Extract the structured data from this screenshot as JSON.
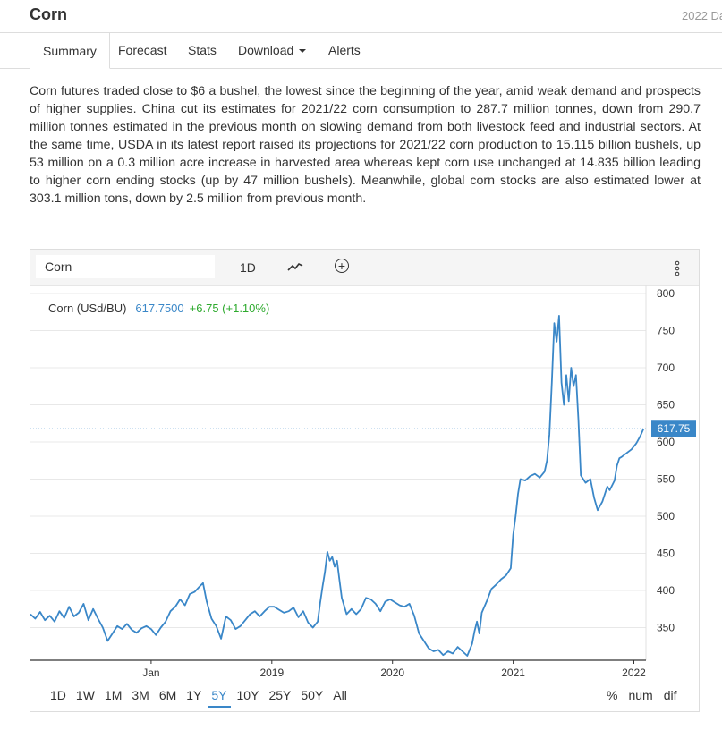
{
  "header": {
    "title": "Corn",
    "date": "2022 Da"
  },
  "tabs": [
    {
      "label": "Summary"
    },
    {
      "label": "Forecast"
    },
    {
      "label": "Stats"
    },
    {
      "label": "Download"
    },
    {
      "label": "Alerts"
    }
  ],
  "description": "Corn futures traded close to $6 a bushel, the lowest since the beginning of the year, amid weak demand and prospects of higher supplies. China cut its estimates for 2021/22 corn consumption to 287.7 million tonnes, down from 290.7 million tonnes estimated in the previous month on slowing demand from both livestock feed and industrial sectors. At the same time, USDA in its latest report raised its projections for 2021/22 corn production to 15.115 billion bushels, up 53 million on a 0.3 million acre increase in harvested area whereas kept corn use unchanged at 14.835 billion leading to higher corn ending stocks (up by 47 million bushels). Meanwhile, global corn stocks are also estimated lower at 303.1 million tons, down by 2.5 million from previous month.",
  "toolbar": {
    "symbol": "Corn",
    "interval": "1D"
  },
  "legend": {
    "name": "Corn (USd/BU)",
    "price": "617.7500",
    "change": "+6.75 (+1.10%)"
  },
  "range_buttons": [
    "1D",
    "1W",
    "1M",
    "3M",
    "6M",
    "1Y",
    "5Y",
    "10Y",
    "25Y",
    "50Y",
    "All"
  ],
  "selected_range": "5Y",
  "modes": [
    "%",
    "num",
    "dif"
  ],
  "colors": {
    "line": "#3a87c8",
    "change_up": "#2eaa2e",
    "price_tag": "#3a87c8"
  },
  "chart_data": {
    "type": "line",
    "series": [
      {
        "name": "Corn (USd/BU)",
        "points": [
          [
            2017.0,
            368
          ],
          [
            2017.04,
            362
          ],
          [
            2017.08,
            371
          ],
          [
            2017.12,
            360
          ],
          [
            2017.16,
            366
          ],
          [
            2017.2,
            358
          ],
          [
            2017.24,
            372
          ],
          [
            2017.28,
            363
          ],
          [
            2017.32,
            378
          ],
          [
            2017.36,
            365
          ],
          [
            2017.4,
            370
          ],
          [
            2017.44,
            382
          ],
          [
            2017.48,
            360
          ],
          [
            2017.52,
            375
          ],
          [
            2017.56,
            362
          ],
          [
            2017.6,
            350
          ],
          [
            2017.64,
            332
          ],
          [
            2017.68,
            342
          ],
          [
            2017.72,
            352
          ],
          [
            2017.76,
            348
          ],
          [
            2017.8,
            355
          ],
          [
            2017.84,
            347
          ],
          [
            2017.88,
            343
          ],
          [
            2017.92,
            349
          ],
          [
            2017.96,
            352
          ],
          [
            2018.0,
            348
          ],
          [
            2018.04,
            340
          ],
          [
            2018.08,
            350
          ],
          [
            2018.12,
            358
          ],
          [
            2018.16,
            372
          ],
          [
            2018.2,
            378
          ],
          [
            2018.24,
            388
          ],
          [
            2018.28,
            380
          ],
          [
            2018.32,
            395
          ],
          [
            2018.36,
            398
          ],
          [
            2018.4,
            405
          ],
          [
            2018.43,
            410
          ],
          [
            2018.46,
            385
          ],
          [
            2018.5,
            362
          ],
          [
            2018.54,
            352
          ],
          [
            2018.58,
            335
          ],
          [
            2018.62,
            365
          ],
          [
            2018.66,
            360
          ],
          [
            2018.7,
            348
          ],
          [
            2018.74,
            352
          ],
          [
            2018.78,
            360
          ],
          [
            2018.82,
            368
          ],
          [
            2018.86,
            372
          ],
          [
            2018.9,
            365
          ],
          [
            2018.94,
            372
          ],
          [
            2018.98,
            378
          ],
          [
            2019.02,
            378
          ],
          [
            2019.06,
            374
          ],
          [
            2019.1,
            370
          ],
          [
            2019.14,
            372
          ],
          [
            2019.18,
            377
          ],
          [
            2019.22,
            364
          ],
          [
            2019.26,
            372
          ],
          [
            2019.3,
            357
          ],
          [
            2019.34,
            350
          ],
          [
            2019.38,
            358
          ],
          [
            2019.4,
            383
          ],
          [
            2019.42,
            405
          ],
          [
            2019.44,
            425
          ],
          [
            2019.46,
            452
          ],
          [
            2019.48,
            440
          ],
          [
            2019.5,
            445
          ],
          [
            2019.52,
            432
          ],
          [
            2019.54,
            440
          ],
          [
            2019.56,
            415
          ],
          [
            2019.58,
            390
          ],
          [
            2019.62,
            368
          ],
          [
            2019.66,
            375
          ],
          [
            2019.7,
            368
          ],
          [
            2019.74,
            375
          ],
          [
            2019.78,
            390
          ],
          [
            2019.82,
            388
          ],
          [
            2019.86,
            382
          ],
          [
            2019.9,
            372
          ],
          [
            2019.94,
            385
          ],
          [
            2019.98,
            388
          ],
          [
            2020.02,
            384
          ],
          [
            2020.06,
            380
          ],
          [
            2020.1,
            378
          ],
          [
            2020.14,
            382
          ],
          [
            2020.18,
            366
          ],
          [
            2020.22,
            342
          ],
          [
            2020.26,
            332
          ],
          [
            2020.3,
            322
          ],
          [
            2020.34,
            318
          ],
          [
            2020.38,
            320
          ],
          [
            2020.42,
            313
          ],
          [
            2020.46,
            318
          ],
          [
            2020.5,
            315
          ],
          [
            2020.54,
            324
          ],
          [
            2020.58,
            318
          ],
          [
            2020.62,
            312
          ],
          [
            2020.66,
            328
          ],
          [
            2020.68,
            345
          ],
          [
            2020.7,
            358
          ],
          [
            2020.72,
            342
          ],
          [
            2020.74,
            370
          ],
          [
            2020.78,
            385
          ],
          [
            2020.82,
            402
          ],
          [
            2020.86,
            408
          ],
          [
            2020.9,
            415
          ],
          [
            2020.94,
            420
          ],
          [
            2020.98,
            430
          ],
          [
            2021.0,
            475
          ],
          [
            2021.02,
            500
          ],
          [
            2021.04,
            530
          ],
          [
            2021.06,
            550
          ],
          [
            2021.1,
            548
          ],
          [
            2021.14,
            554
          ],
          [
            2021.18,
            557
          ],
          [
            2021.22,
            552
          ],
          [
            2021.26,
            560
          ],
          [
            2021.28,
            575
          ],
          [
            2021.3,
            610
          ],
          [
            2021.32,
            680
          ],
          [
            2021.34,
            760
          ],
          [
            2021.36,
            735
          ],
          [
            2021.38,
            770
          ],
          [
            2021.4,
            680
          ],
          [
            2021.42,
            650
          ],
          [
            2021.44,
            690
          ],
          [
            2021.46,
            655
          ],
          [
            2021.48,
            700
          ],
          [
            2021.5,
            675
          ],
          [
            2021.52,
            690
          ],
          [
            2021.54,
            630
          ],
          [
            2021.56,
            555
          ],
          [
            2021.6,
            545
          ],
          [
            2021.64,
            550
          ],
          [
            2021.67,
            525
          ],
          [
            2021.7,
            508
          ],
          [
            2021.74,
            520
          ],
          [
            2021.78,
            540
          ],
          [
            2021.8,
            535
          ],
          [
            2021.84,
            548
          ],
          [
            2021.86,
            568
          ],
          [
            2021.88,
            578
          ],
          [
            2021.9,
            580
          ],
          [
            2021.94,
            585
          ],
          [
            2021.98,
            590
          ],
          [
            2022.02,
            598
          ],
          [
            2022.05,
            607
          ],
          [
            2022.08,
            617.75
          ]
        ]
      }
    ],
    "xticks": [
      {
        "value": 2018.0,
        "label": "Jan"
      },
      {
        "value": 2019.0,
        "label": "2019"
      },
      {
        "value": 2020.0,
        "label": "2020"
      },
      {
        "value": 2021.0,
        "label": "2021"
      },
      {
        "value": 2022.0,
        "label": "2022"
      }
    ],
    "yticks": [
      350,
      400,
      450,
      500,
      550,
      600,
      650,
      700,
      750,
      800
    ],
    "xlim": [
      2017.0,
      2022.1
    ],
    "ylim": [
      306,
      812
    ],
    "last_value": 617.75,
    "last_label": "617.75",
    "grid": true
  }
}
